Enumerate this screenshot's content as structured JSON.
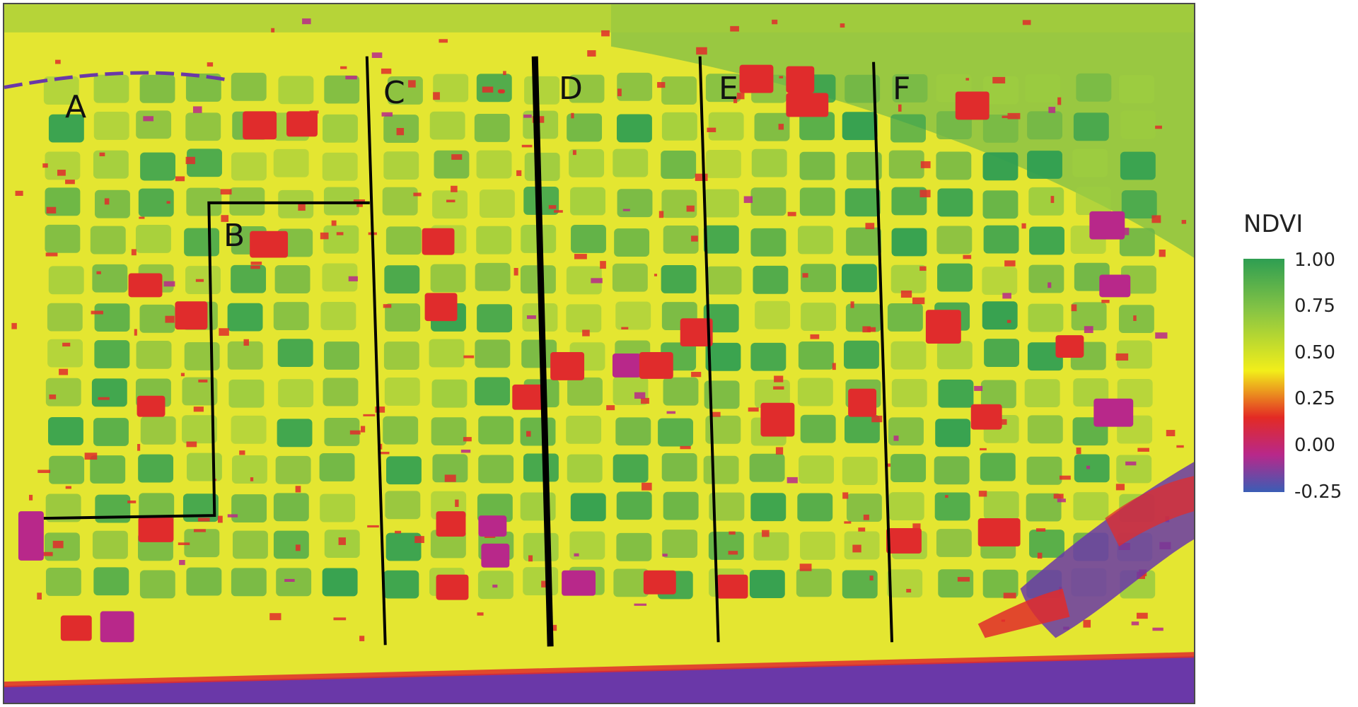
{
  "zones": [
    {
      "id": "A",
      "label": "A"
    },
    {
      "id": "B",
      "label": "B"
    },
    {
      "id": "C",
      "label": "C"
    },
    {
      "id": "D",
      "label": "D"
    },
    {
      "id": "E",
      "label": "E"
    },
    {
      "id": "F",
      "label": "F"
    }
  ],
  "legend": {
    "title": "NDVI",
    "ticks": [
      "1.00",
      "0.75",
      "0.50",
      "0.25",
      "0.00",
      "-0.25"
    ],
    "colors": {
      "high": "#2e9e52",
      "upper": "#86c444",
      "mid": "#f2ee1a",
      "low": "#e32a24",
      "lower": "#b8288a",
      "min": "#3a5db5"
    }
  },
  "map": {
    "background_field": "#d9e33a",
    "vegetation": "#6cb548",
    "stress_patch": "#e02c2c",
    "bare_strip": "#6a38a8",
    "boundary_line": "#000000"
  }
}
